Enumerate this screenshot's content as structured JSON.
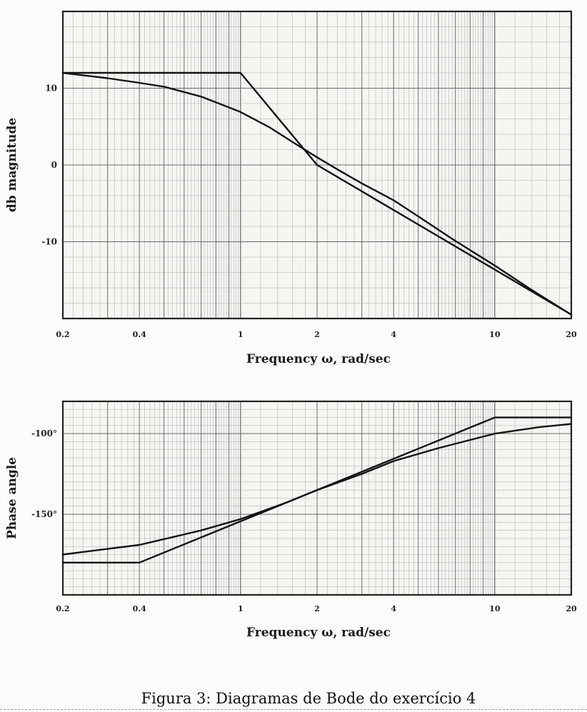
{
  "caption": "Figura 3: Diagramas de Bode do exercício 4",
  "chart_data": [
    {
      "type": "line",
      "xscale": "log",
      "xlim": [
        0.2,
        20
      ],
      "ylim": [
        -20,
        20
      ],
      "grid": true,
      "xlabel": "Frequency ω, rad/sec",
      "ylabel": "db magnitude",
      "xticks": [
        0.2,
        0.4,
        1,
        2,
        4,
        10,
        20
      ],
      "xtick_labels": [
        "0.2",
        "0.4",
        "1",
        "2",
        "4",
        "10",
        "20"
      ],
      "yticks": [
        10,
        0,
        -10
      ],
      "ytick_labels": [
        "10",
        "0",
        "-10"
      ],
      "series": [
        {
          "style": "asymptote",
          "x": [
            0.2,
            1,
            2,
            20
          ],
          "y": [
            12,
            12,
            0,
            -19.5
          ]
        },
        {
          "style": "exact",
          "x": [
            0.2,
            0.3,
            0.4,
            0.5,
            0.7,
            1,
            1.3,
            1.6,
            2,
            2.5,
            3,
            4,
            5,
            7,
            10,
            14,
            20
          ],
          "y": [
            12,
            11.3,
            10.7,
            10.2,
            8.9,
            6.9,
            4.9,
            3.0,
            1.0,
            -0.9,
            -2.4,
            -4.6,
            -6.7,
            -9.9,
            -13.1,
            -16.3,
            -19.5
          ]
        }
      ]
    },
    {
      "type": "line",
      "xscale": "log",
      "xlim": [
        0.2,
        20
      ],
      "ylim": [
        -200,
        -80
      ],
      "grid": true,
      "xlabel": "Frequency ω, rad/sec",
      "ylabel": "Phase angle",
      "xticks": [
        0.2,
        0.4,
        1,
        2,
        4,
        10,
        20
      ],
      "xtick_labels": [
        "0.2",
        "0.4",
        "1",
        "2",
        "4",
        "10",
        "20"
      ],
      "yticks": [
        -100,
        -150
      ],
      "ytick_labels": [
        "-100°",
        "-150°"
      ],
      "series": [
        {
          "style": "asymptote",
          "x": [
            0.2,
            0.4,
            10,
            20
          ],
          "y": [
            -180,
            -180,
            -90,
            -90
          ]
        },
        {
          "style": "exact",
          "x": [
            0.2,
            0.4,
            0.7,
            1,
            1.5,
            2,
            3,
            4,
            6,
            10,
            15,
            20
          ],
          "y": [
            -175,
            -169,
            -160,
            -153,
            -143,
            -135,
            -125,
            -117,
            -109,
            -100,
            -96,
            -94
          ]
        }
      ]
    }
  ]
}
